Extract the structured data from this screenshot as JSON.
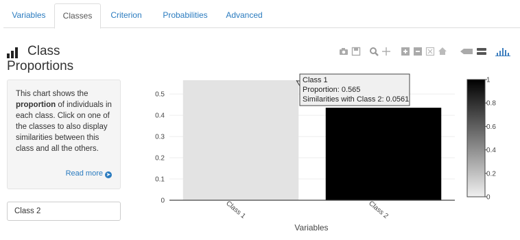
{
  "tabs": [
    {
      "label": "Variables",
      "active": false
    },
    {
      "label": "Classes",
      "active": true
    },
    {
      "label": "Criterion",
      "active": false
    },
    {
      "label": "Probabilities",
      "active": false
    },
    {
      "label": "Advanced",
      "active": false
    }
  ],
  "panel": {
    "title_line1": "Class",
    "title_line2": "Proportions",
    "info_before": "This chart shows the ",
    "info_bold": "proportion",
    "info_after": " of individuals in each class. Click on one of the classes to also display similarities between this class and all the others.",
    "read_more": "Read more",
    "selected_class": "Class 2"
  },
  "modebar": {
    "icons": [
      "camera-icon",
      "save-icon",
      "zoom-icon",
      "pan-icon",
      "zoom-in-icon",
      "zoom-out-icon",
      "autoscale-icon",
      "home-icon",
      "hover-closest-icon",
      "hover-compare-icon",
      "plotly-logo-icon"
    ]
  },
  "chart_data": {
    "type": "bar",
    "categories": [
      "Class 1",
      "Class 2"
    ],
    "values": [
      0.565,
      0.4355
    ],
    "bar_shades": [
      0.0561,
      1
    ],
    "xlabel": "Variables",
    "ylabel": "",
    "ylim": [
      0,
      0.565
    ],
    "yticks": [
      0,
      0.1,
      0.2,
      0.3,
      0.4,
      0.5
    ],
    "ytick_labels": [
      "0",
      "0.1",
      "0.2",
      "0.3",
      "0.4",
      "0.5"
    ],
    "colorbar": {
      "range": [
        0,
        1
      ],
      "ticks": [
        0,
        0.2,
        0.4,
        0.6,
        0.8,
        1
      ],
      "tick_labels": [
        "0",
        "0.2",
        "0.4",
        "0.6",
        "0.8",
        "1"
      ]
    },
    "tooltip": {
      "line1": "Class 1",
      "line2": "Proportion: 0.565",
      "line3": "Similarities with Class 2: 0.0561"
    }
  }
}
